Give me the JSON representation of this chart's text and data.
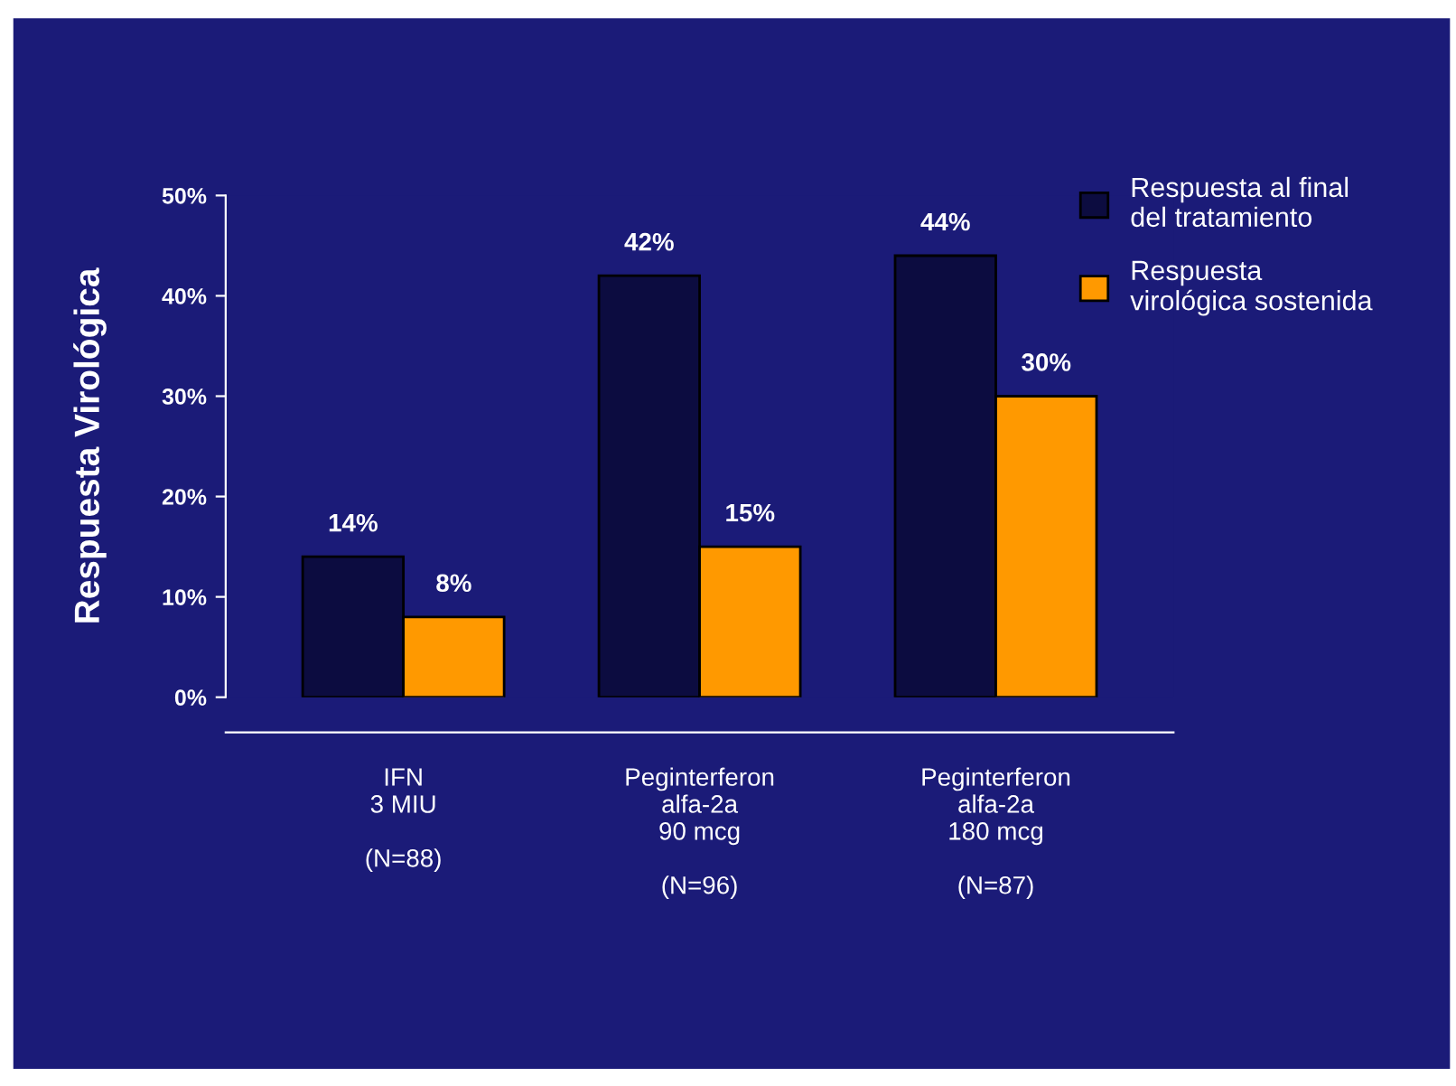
{
  "chart_data": {
    "type": "bar",
    "ylabel": "Respuesta Virológica",
    "categories": [
      "IFN\n3 MIU\n\n(N=88)",
      "Peginterferon\nalfa-2a\n90 mcg\n\n(N=96)",
      "Peginterferon\nalfa-2a\n180 mcg\n\n(N=87)"
    ],
    "series": [
      {
        "name": "Respuesta al final\ndel tratamiento",
        "color": "#0c0c40",
        "values": [
          14,
          42,
          44
        ],
        "value_labels": [
          "14%",
          "42%",
          "44%"
        ]
      },
      {
        "name": "Respuesta\nvirológica sostenida",
        "color": "#ff9900",
        "values": [
          8,
          15,
          30
        ],
        "value_labels": [
          "8%",
          "15%",
          "30%"
        ]
      }
    ],
    "ylim": [
      0,
      50
    ],
    "yticks": [
      {
        "value": 0,
        "label": "0%"
      },
      {
        "value": 10,
        "label": "10%"
      },
      {
        "value": 20,
        "label": "20%"
      },
      {
        "value": 30,
        "label": "30%"
      },
      {
        "value": 40,
        "label": "40%"
      },
      {
        "value": 50,
        "label": "50%"
      }
    ],
    "grid": false,
    "legend": "top right"
  }
}
